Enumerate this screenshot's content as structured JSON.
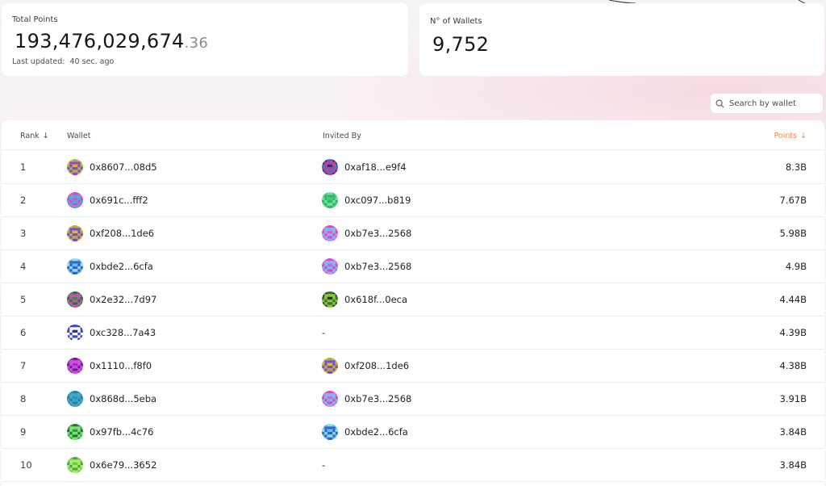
{
  "stats": {
    "total_points": {
      "label": "Total Points",
      "value_int": "193,476,029,674",
      "value_dec": ".36",
      "updated_label": "Last updated:",
      "updated_value": "40 sec. ago"
    },
    "wallets": {
      "label": "N° of Wallets",
      "value": "9,752"
    }
  },
  "search": {
    "placeholder": "Search by wallet",
    "icon": "search-icon"
  },
  "table": {
    "headers": {
      "rank": "Rank",
      "wallet": "Wallet",
      "invited_by": "Invited By",
      "points": "Points"
    },
    "sort_icon": "arrow-down-icon",
    "rows": [
      {
        "rank": "1",
        "wallet": "0x8607...08d5",
        "invited_by": "0xaf18...e9f4",
        "points": "8.3B",
        "wallet_colors": [
          "#d9b23d",
          "#9b3fc5",
          "#7ec83a"
        ],
        "invited_colors": [
          "#2a2f7a",
          "#c23a8c",
          "#3f6fd0"
        ]
      },
      {
        "rank": "2",
        "wallet": "0x691c...fff2",
        "invited_by": "0xc097...b819",
        "points": "7.67B",
        "wallet_colors": [
          "#e44fb5",
          "#4aa7d6",
          "#c24bd8"
        ],
        "invited_colors": [
          "#3ecf73",
          "#2fb66a",
          "#6fe39a"
        ]
      },
      {
        "rank": "3",
        "wallet": "0xf208...1de6",
        "invited_by": "0xb7e3...2568",
        "points": "5.98B",
        "wallet_colors": [
          "#cbbf3a",
          "#7a4cc9",
          "#b9ad34"
        ],
        "invited_colors": [
          "#e05ad2",
          "#7bb7e8",
          "#d14ad0"
        ]
      },
      {
        "rank": "4",
        "wallet": "0xbde2...6cfa",
        "invited_by": "0xb7e3...2568",
        "points": "4.9B",
        "wallet_colors": [
          "#58c7ea",
          "#3a5fc9",
          "#86e0f2"
        ],
        "invited_colors": [
          "#e05ad2",
          "#7bb7e8",
          "#d14ad0"
        ]
      },
      {
        "rank": "5",
        "wallet": "0x2e32...7d97",
        "invited_by": "0x618f...0eca",
        "points": "4.44B",
        "wallet_colors": [
          "#3b8a3a",
          "#c24bb8",
          "#2f6e2f"
        ],
        "invited_colors": [
          "#2a3a1c",
          "#7ec83a",
          "#4a6a24"
        ]
      },
      {
        "rank": "6",
        "wallet": "0xc328...7a43",
        "invited_by": "-",
        "points": "4.39B",
        "wallet_colors": [
          "#2b2fa5",
          "#ffffff",
          "#3b4ad0"
        ],
        "invited_colors": []
      },
      {
        "rank": "7",
        "wallet": "0x1110...f8f0",
        "invited_by": "0xf208...1de6",
        "points": "4.38B",
        "wallet_colors": [
          "#9b2fc5",
          "#d24ad8",
          "#6a1f9a"
        ],
        "invited_colors": [
          "#cbbf3a",
          "#7a4cc9",
          "#b9ad34"
        ]
      },
      {
        "rank": "8",
        "wallet": "0x868d...5eba",
        "invited_by": "0xb7e3...2568",
        "points": "3.91B",
        "wallet_colors": [
          "#2f8fb0",
          "#3aa7c9",
          "#2a7d9a"
        ],
        "invited_colors": [
          "#e05ad2",
          "#7bb7e8",
          "#d14ad0"
        ]
      },
      {
        "rank": "9",
        "wallet": "0x97fb...4c76",
        "invited_by": "0xbde2...6cfa",
        "points": "3.84B",
        "wallet_colors": [
          "#2e9a3a",
          "#7be07a",
          "#1f7a2a"
        ],
        "invited_colors": [
          "#58c7ea",
          "#3a5fc9",
          "#86e0f2"
        ]
      },
      {
        "rank": "10",
        "wallet": "0x6e79...3652",
        "invited_by": "-",
        "points": "3.84B",
        "wallet_colors": [
          "#6cc94a",
          "#a9e86a",
          "#4aa73a"
        ],
        "invited_colors": []
      }
    ]
  }
}
